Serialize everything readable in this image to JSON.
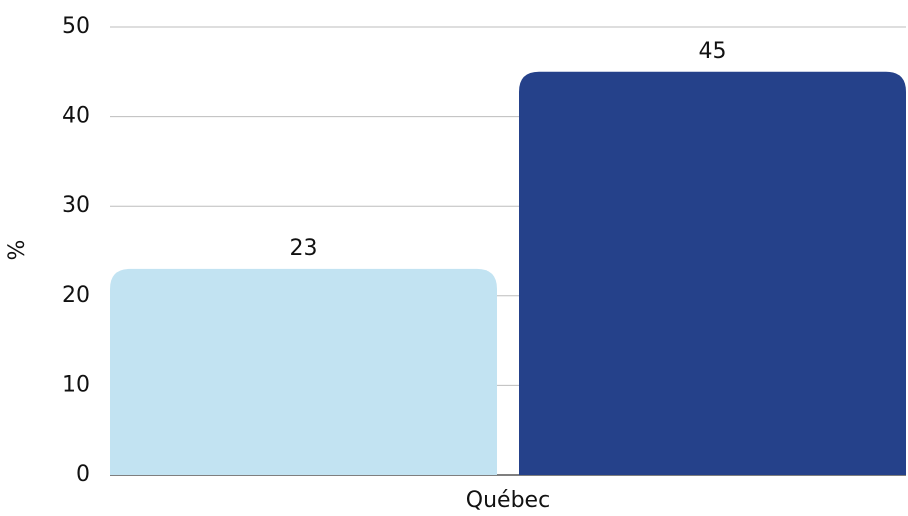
{
  "chart_data": {
    "type": "bar",
    "y_label": "%",
    "categories": [
      "Québec"
    ],
    "series": [
      {
        "color": "#c2e3f2",
        "values": [
          23
        ]
      },
      {
        "color": "#25418a",
        "values": [
          45
        ]
      }
    ],
    "ylim": [
      0,
      50
    ],
    "yticks": [
      0,
      10,
      20,
      30,
      40,
      50
    ],
    "grid": true
  }
}
